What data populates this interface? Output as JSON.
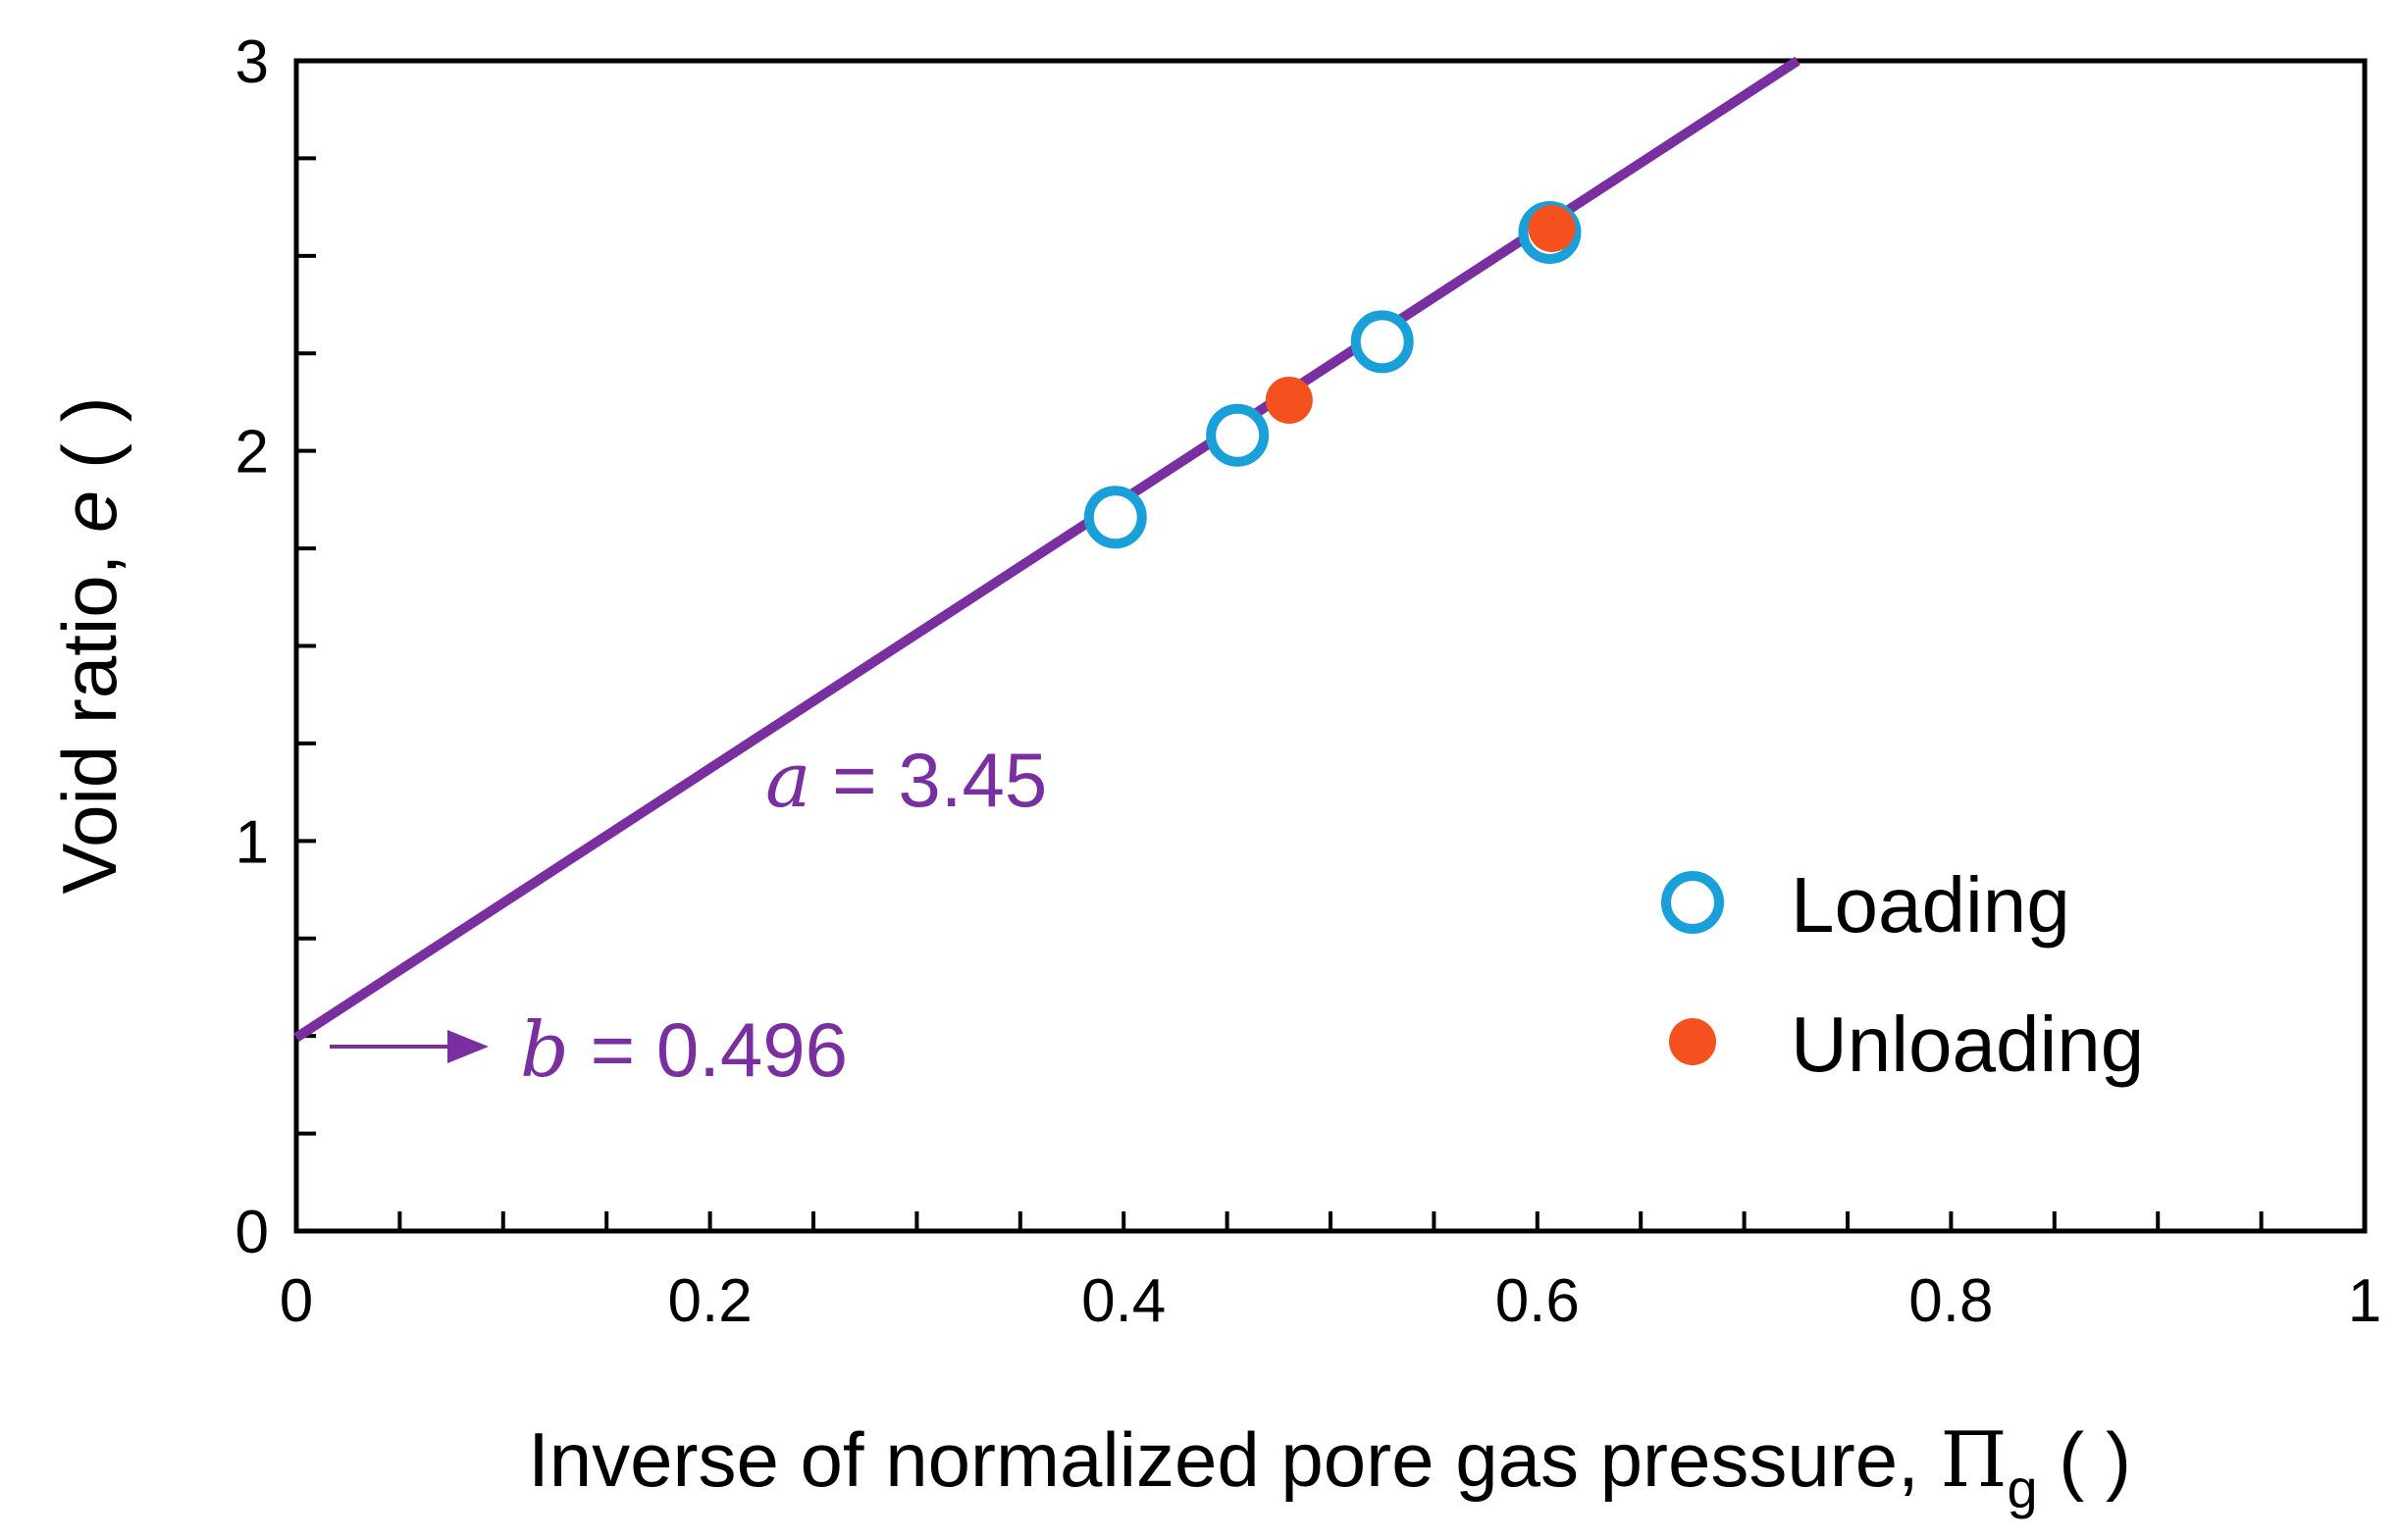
{
  "chart_data": {
    "type": "scatter",
    "xlabel_prefix": "Inverse of normalized pore gas pressure, ",
    "xlabel_symbol": "Π",
    "xlabel_subscript": "g",
    "xlabel_suffix": " ( )",
    "ylabel_prefix": "Void ratio, ",
    "ylabel_var": "e",
    "ylabel_suffix": " ( )",
    "xlim": [
      0,
      1
    ],
    "ylim": [
      0,
      3
    ],
    "x_ticks": [
      0,
      0.2,
      0.4,
      0.6,
      0.8,
      1
    ],
    "x_tick_labels": [
      "0",
      "0.2",
      "0.4",
      "0.6",
      "0.8",
      "1"
    ],
    "y_ticks": [
      0,
      1,
      2,
      3
    ],
    "y_tick_labels": [
      "0",
      "1",
      "2",
      "3"
    ],
    "x_minor_step": 0.05,
    "y_minor_step": 0.25,
    "series": [
      {
        "name": "Loading",
        "marker": "open-circle",
        "color": "#1aa0d8",
        "points": [
          [
            0.396,
            1.83
          ],
          [
            0.455,
            2.04
          ],
          [
            0.525,
            2.28
          ],
          [
            0.606,
            2.56
          ]
        ]
      },
      {
        "name": "Unloading",
        "marker": "filled-circle",
        "color": "#f4511e",
        "points": [
          [
            0.48,
            2.13
          ],
          [
            0.607,
            2.57
          ]
        ]
      }
    ],
    "fit_line": {
      "slope": 3.45,
      "intercept": 0.496,
      "color": "#7a2fa0"
    },
    "annotations": {
      "a_var": "a",
      "a_text": " = 3.45",
      "b_var": "b",
      "b_text": " = 0.496"
    }
  }
}
